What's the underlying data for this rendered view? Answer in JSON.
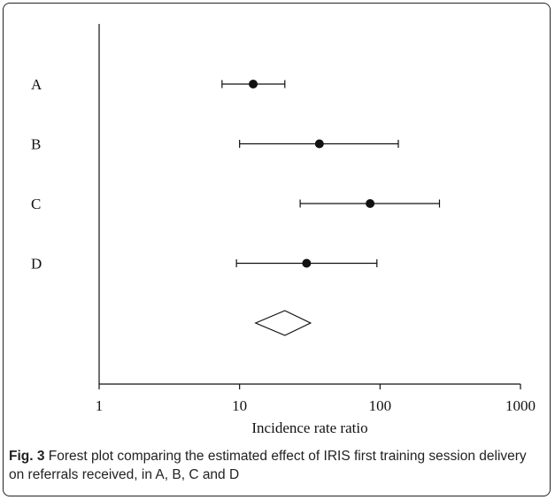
{
  "caption": {
    "label": "Fig. 3",
    "text": " Forest plot comparing the estimated effect of IRIS first training session delivery on referrals received, in A, B, C and D"
  },
  "chart_data": {
    "type": "forest",
    "xlabel": "Incidence rate ratio",
    "xscale": "log",
    "xlim": [
      1,
      1000
    ],
    "xticks": [
      1,
      10,
      100,
      1000
    ],
    "xtick_labels": [
      "1",
      "10",
      "100",
      "1000"
    ],
    "categories": [
      "A",
      "B",
      "C",
      "D"
    ],
    "estimates": [
      12.5,
      37,
      85,
      30
    ],
    "ci_lower": [
      7.5,
      10,
      27,
      9.5
    ],
    "ci_upper": [
      21,
      135,
      265,
      95
    ],
    "pooled": {
      "estimate": 21,
      "ci_lower": 13,
      "ci_upper": 32
    },
    "grid": false,
    "colors": {
      "marker": "#111111",
      "line": "#111111",
      "diamond_fill": "#ffffff"
    }
  }
}
